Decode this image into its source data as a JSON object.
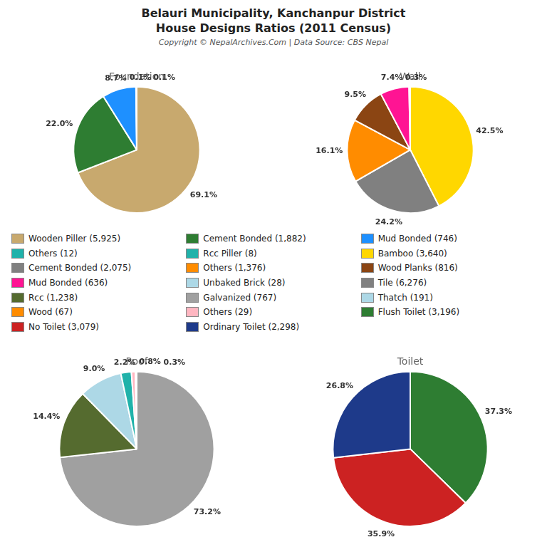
{
  "title": [
    "Belauri Municipality, Kanchanpur District",
    "House Designs Ratios (2011 Census)"
  ],
  "subtitle": "Copyright © NepalArchives.Com | Data Source: CBS Nepal",
  "annotations": [
    {
      "text": "Wooden Piller (5,925)",
      "color": "#c8a96e"
    },
    {
      "text": "Others (12)",
      "color": "#20b2aa"
    },
    {
      "text": "Cement Bonded (2,075)",
      "color": "#808080"
    },
    {
      "text": "Mud Bonded (636)",
      "color": "#ff1493"
    },
    {
      "text": "Rcc (1,238)",
      "color": "#556b2f"
    },
    {
      "text": "Wood (67)",
      "color": "#ff8c00"
    },
    {
      "text": "No Toilet (3,079)",
      "color": "#cc2222"
    },
    {
      "text": "Cement Bonded (1,882)",
      "color": "#2e7d32"
    },
    {
      "text": "Rcc Piller (8)",
      "color": "#20b2aa"
    },
    {
      "text": "Others (1,376)",
      "color": "#ff8c00"
    },
    {
      "text": "Unbaked Brick (28)",
      "color": "#add8e6"
    },
    {
      "text": "Galvanized (767)",
      "color": "#a0a0a0"
    },
    {
      "text": "Others (29)",
      "color": "#ffb6c1"
    },
    {
      "text": "Ordinary Toilet (2,298)",
      "color": "#1e3a8a"
    },
    {
      "text": "Mud Bonded (746)",
      "color": "#1e90ff"
    },
    {
      "text": "Bamboo (3,640)",
      "color": "#ffd700"
    },
    {
      "text": "Wood Planks (816)",
      "color": "#8b4513"
    },
    {
      "text": "Tile (6,276)",
      "color": "#808080"
    },
    {
      "text": "Thatch (191)",
      "color": "#add8e6"
    },
    {
      "text": "Flush Toilet (3,196)",
      "color": "#2e7d32"
    }
  ],
  "chart_data": [
    {
      "type": "pie",
      "title": "Foundation",
      "values": [
        69.1,
        22.0,
        8.7,
        0.1,
        0.1
      ],
      "value_labels": [
        "69.1%",
        "22.0%",
        "8.7%",
        "0.1%",
        "0.1%"
      ],
      "colors": [
        "#c8a96e",
        "#2e7d32",
        "#1e90ff",
        "#20b2aa",
        "#d3d3d3"
      ],
      "data_labels": true
    },
    {
      "type": "pie",
      "title": "Wall",
      "values": [
        42.5,
        24.2,
        16.1,
        9.5,
        7.4,
        0.3
      ],
      "value_labels": [
        "42.5%",
        "24.2%",
        "16.1%",
        "9.5%",
        "7.4%",
        "0.3%"
      ],
      "colors": [
        "#ffd700",
        "#808080",
        "#ff8c00",
        "#8b4513",
        "#ff1493",
        "#add8e6"
      ],
      "data_labels": true
    },
    {
      "type": "pie",
      "title": "Roof",
      "values": [
        73.2,
        14.4,
        9.0,
        2.2,
        0.8,
        0.3
      ],
      "value_labels": [
        "73.2%",
        "14.4%",
        "9.0%",
        "2.2%",
        "0.8%",
        "0.3%"
      ],
      "colors": [
        "#a0a0a0",
        "#556b2f",
        "#add8e6",
        "#20b2aa",
        "#ffb6c1",
        "#ff8c00"
      ],
      "data_labels": true
    },
    {
      "type": "pie",
      "title": "Toilet",
      "values": [
        37.3,
        35.9,
        26.8
      ],
      "value_labels": [
        "37.3%",
        "35.9%",
        "26.8%"
      ],
      "colors": [
        "#2e7d32",
        "#cc2222",
        "#1e3a8a"
      ],
      "data_labels": true
    }
  ]
}
